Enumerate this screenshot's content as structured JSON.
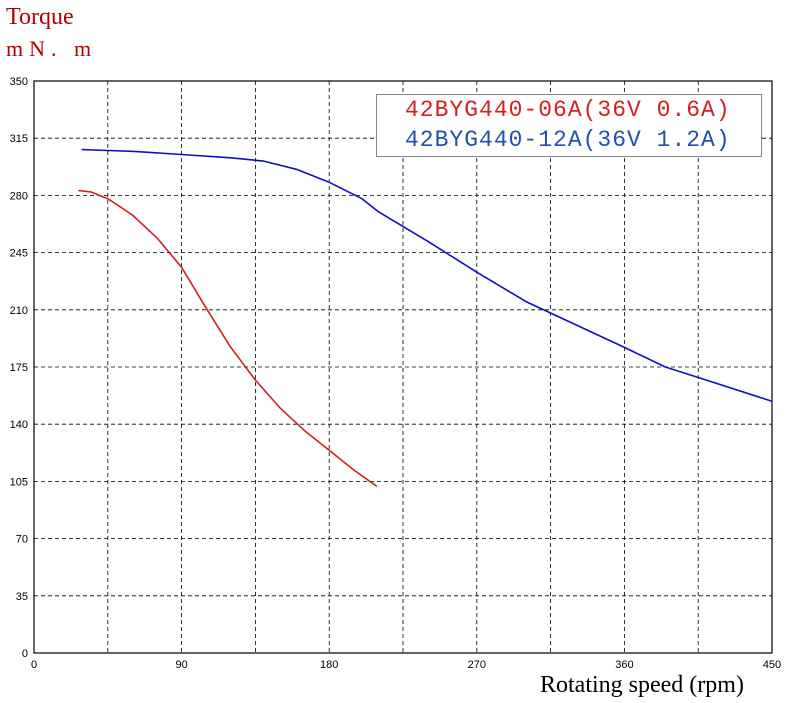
{
  "y_title": "Torque",
  "y_unit": "mN. m",
  "x_title": "Rotating speed (rpm)",
  "chart_data": {
    "type": "line",
    "xlim": [
      0,
      450
    ],
    "ylim": [
      0,
      350
    ],
    "x_ticks": [
      0,
      90,
      180,
      270,
      360,
      450
    ],
    "y_ticks": [
      0,
      35,
      70,
      105,
      140,
      175,
      210,
      245,
      280,
      315,
      350
    ],
    "grid": true,
    "legend_position": "top-right",
    "series": [
      {
        "name": "42BYG440-06A(36V 0.6A)",
        "color": "#d42020",
        "points": [
          [
            27,
            283
          ],
          [
            35,
            282
          ],
          [
            45,
            278
          ],
          [
            60,
            268
          ],
          [
            75,
            254
          ],
          [
            90,
            236
          ],
          [
            105,
            211
          ],
          [
            120,
            187
          ],
          [
            135,
            167
          ],
          [
            150,
            150
          ],
          [
            165,
            136
          ],
          [
            180,
            124
          ],
          [
            195,
            112
          ],
          [
            209,
            102
          ]
        ]
      },
      {
        "name": "42BYG440-12A(36V 1.2A)",
        "color": "#1010c0",
        "points": [
          [
            29,
            308
          ],
          [
            45,
            307.5
          ],
          [
            60,
            307
          ],
          [
            90,
            305
          ],
          [
            120,
            303
          ],
          [
            140,
            301
          ],
          [
            160,
            296
          ],
          [
            180,
            288
          ],
          [
            200,
            278
          ],
          [
            210,
            270
          ],
          [
            240,
            252
          ],
          [
            270,
            233
          ],
          [
            300,
            215
          ],
          [
            330,
            201
          ],
          [
            360,
            187
          ],
          [
            385,
            175
          ],
          [
            410,
            167
          ],
          [
            450,
            154
          ]
        ]
      }
    ]
  }
}
